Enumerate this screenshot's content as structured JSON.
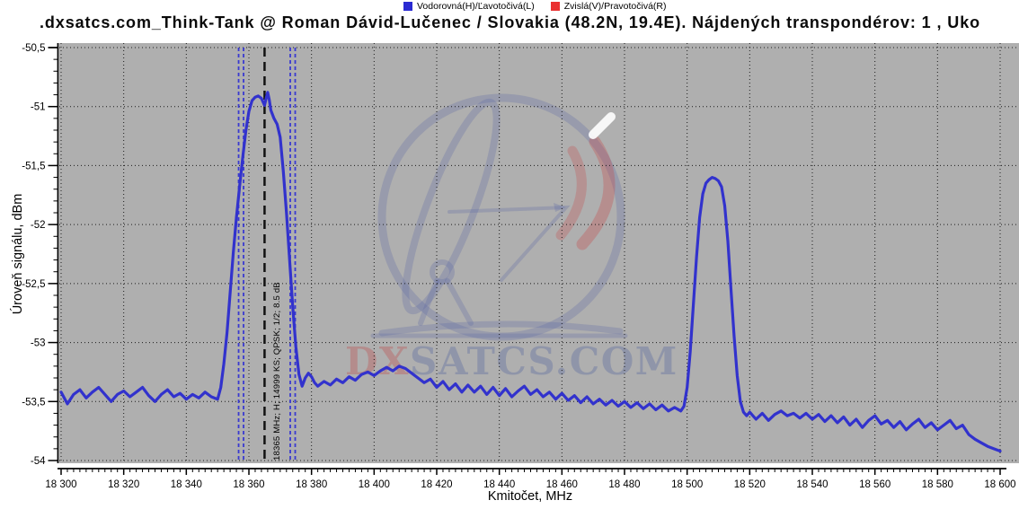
{
  "header": {
    "title": ".dxsatcs.com_Think-Tank @ Roman Dávid-Lučenec / Slovakia (48.2N, 19.4E). Nájdených transpondérov: 1 , Uko"
  },
  "legend": {
    "items": [
      {
        "label": "Vodorovná(H)/Ľavotočivá(L)",
        "color": "#2a2ad2"
      },
      {
        "label": "Zvislá(V)/Pravotočivá(R)",
        "color": "#ea3131"
      }
    ]
  },
  "chart_data": {
    "type": "line",
    "xlabel": "Kmitočet, MHz",
    "ylabel": "Úroveň signálu, dBm",
    "xlim": [
      18300,
      18600
    ],
    "ylim": [
      -54,
      -50.5
    ],
    "grid": "dotted",
    "plot_bg": "#afafaf",
    "x_ticks": [
      18300,
      18320,
      18340,
      18360,
      18380,
      18400,
      18420,
      18440,
      18460,
      18480,
      18500,
      18520,
      18540,
      18560,
      18580,
      18600
    ],
    "x_tick_labels": [
      "18 300",
      "18 320",
      "18 340",
      "18 360",
      "18 380",
      "18 400",
      "18 420",
      "18 440",
      "18 460",
      "18 480",
      "18 500",
      "18 520",
      "18 540",
      "18 560",
      "18 580",
      "18 600"
    ],
    "x_minor_step": 2,
    "y_ticks": [
      -50.5,
      -51,
      -51.5,
      -52,
      -52.5,
      -53,
      -53.5,
      -54
    ],
    "y_tick_labels": [
      "-50,5",
      "-51",
      "-51,5",
      "-52",
      "-52,5",
      "-53",
      "-53,5",
      "-54"
    ],
    "y_minor_step": 0.1,
    "marker": {
      "freq_mhz": 18365,
      "label": "18365 MHz; H; 14999 KS; QPSK; 1/2; 8.5 dB",
      "band_edges_mhz": [
        18357.5,
        18374
      ],
      "line_color": "#111111",
      "band_color": "#3a3ad0"
    },
    "watermark": {
      "text_dx": "DX",
      "text_rest": "SATCS.COM"
    },
    "series": [
      {
        "name": "Vodorovná(H)/Ľavotočivá(L)",
        "color": "#3232cd",
        "points": [
          [
            18300,
            -53.42
          ],
          [
            18302,
            -53.52
          ],
          [
            18304,
            -53.44
          ],
          [
            18306,
            -53.4
          ],
          [
            18308,
            -53.47
          ],
          [
            18310,
            -53.42
          ],
          [
            18312,
            -53.38
          ],
          [
            18314,
            -53.44
          ],
          [
            18316,
            -53.5
          ],
          [
            18318,
            -53.44
          ],
          [
            18320,
            -53.41
          ],
          [
            18322,
            -53.46
          ],
          [
            18324,
            -53.42
          ],
          [
            18326,
            -53.38
          ],
          [
            18328,
            -53.45
          ],
          [
            18330,
            -53.5
          ],
          [
            18332,
            -53.44
          ],
          [
            18334,
            -53.4
          ],
          [
            18336,
            -53.46
          ],
          [
            18338,
            -53.43
          ],
          [
            18340,
            -53.48
          ],
          [
            18342,
            -53.44
          ],
          [
            18344,
            -53.47
          ],
          [
            18346,
            -53.42
          ],
          [
            18348,
            -53.46
          ],
          [
            18350,
            -53.48
          ],
          [
            18351,
            -53.38
          ],
          [
            18352,
            -53.18
          ],
          [
            18353,
            -52.92
          ],
          [
            18354,
            -52.58
          ],
          [
            18355,
            -52.24
          ],
          [
            18356,
            -51.94
          ],
          [
            18357,
            -51.68
          ],
          [
            18358,
            -51.44
          ],
          [
            18359,
            -51.21
          ],
          [
            18360,
            -51.04
          ],
          [
            18361,
            -50.95
          ],
          [
            18362,
            -50.92
          ],
          [
            18363,
            -50.91
          ],
          [
            18364,
            -50.93
          ],
          [
            18365,
            -50.99
          ],
          [
            18365.6,
            -50.92
          ],
          [
            18366,
            -50.88
          ],
          [
            18366.5,
            -50.94
          ],
          [
            18367,
            -51.03
          ],
          [
            18368,
            -51.1
          ],
          [
            18369,
            -51.15
          ],
          [
            18370,
            -51.26
          ],
          [
            18371,
            -51.55
          ],
          [
            18372,
            -51.9
          ],
          [
            18373,
            -52.3
          ],
          [
            18374,
            -52.7
          ],
          [
            18375,
            -53.04
          ],
          [
            18376,
            -53.27
          ],
          [
            18377,
            -53.37
          ],
          [
            18378,
            -53.3
          ],
          [
            18379,
            -53.26
          ],
          [
            18380,
            -53.29
          ],
          [
            18381,
            -53.34
          ],
          [
            18382,
            -53.37
          ],
          [
            18384,
            -53.33
          ],
          [
            18386,
            -53.36
          ],
          [
            18388,
            -53.31
          ],
          [
            18390,
            -53.34
          ],
          [
            18392,
            -53.29
          ],
          [
            18394,
            -53.32
          ],
          [
            18396,
            -53.27
          ],
          [
            18398,
            -53.25
          ],
          [
            18400,
            -53.28
          ],
          [
            18402,
            -53.24
          ],
          [
            18404,
            -53.21
          ],
          [
            18406,
            -53.24
          ],
          [
            18408,
            -53.2
          ],
          [
            18410,
            -53.22
          ],
          [
            18412,
            -53.26
          ],
          [
            18414,
            -53.3
          ],
          [
            18416,
            -53.34
          ],
          [
            18418,
            -53.31
          ],
          [
            18420,
            -53.38
          ],
          [
            18422,
            -53.33
          ],
          [
            18424,
            -53.4
          ],
          [
            18426,
            -53.35
          ],
          [
            18428,
            -53.42
          ],
          [
            18430,
            -53.36
          ],
          [
            18432,
            -53.42
          ],
          [
            18434,
            -53.37
          ],
          [
            18436,
            -53.44
          ],
          [
            18438,
            -53.38
          ],
          [
            18440,
            -53.45
          ],
          [
            18442,
            -53.39
          ],
          [
            18444,
            -53.46
          ],
          [
            18446,
            -53.41
          ],
          [
            18448,
            -53.37
          ],
          [
            18450,
            -53.44
          ],
          [
            18452,
            -53.4
          ],
          [
            18454,
            -53.46
          ],
          [
            18456,
            -53.42
          ],
          [
            18458,
            -53.48
          ],
          [
            18460,
            -53.43
          ],
          [
            18462,
            -53.49
          ],
          [
            18464,
            -53.45
          ],
          [
            18466,
            -53.51
          ],
          [
            18468,
            -53.46
          ],
          [
            18470,
            -53.52
          ],
          [
            18472,
            -53.48
          ],
          [
            18474,
            -53.53
          ],
          [
            18476,
            -53.49
          ],
          [
            18478,
            -53.54
          ],
          [
            18480,
            -53.5
          ],
          [
            18482,
            -53.55
          ],
          [
            18484,
            -53.51
          ],
          [
            18486,
            -53.56
          ],
          [
            18488,
            -53.52
          ],
          [
            18490,
            -53.57
          ],
          [
            18492,
            -53.53
          ],
          [
            18494,
            -53.58
          ],
          [
            18496,
            -53.55
          ],
          [
            18498,
            -53.58
          ],
          [
            18499,
            -53.54
          ],
          [
            18500,
            -53.38
          ],
          [
            18501,
            -53.08
          ],
          [
            18502,
            -52.68
          ],
          [
            18503,
            -52.28
          ],
          [
            18504,
            -51.94
          ],
          [
            18505,
            -51.74
          ],
          [
            18506,
            -51.65
          ],
          [
            18507,
            -51.62
          ],
          [
            18508,
            -51.6
          ],
          [
            18509,
            -51.61
          ],
          [
            18510,
            -51.63
          ],
          [
            18511,
            -51.68
          ],
          [
            18512,
            -51.84
          ],
          [
            18513,
            -52.14
          ],
          [
            18514,
            -52.54
          ],
          [
            18515,
            -52.94
          ],
          [
            18516,
            -53.28
          ],
          [
            18517,
            -53.5
          ],
          [
            18518,
            -53.59
          ],
          [
            18519,
            -53.62
          ],
          [
            18520,
            -53.59
          ],
          [
            18522,
            -53.65
          ],
          [
            18524,
            -53.6
          ],
          [
            18526,
            -53.66
          ],
          [
            18528,
            -53.61
          ],
          [
            18530,
            -53.58
          ],
          [
            18532,
            -53.62
          ],
          [
            18534,
            -53.6
          ],
          [
            18536,
            -53.64
          ],
          [
            18538,
            -53.6
          ],
          [
            18540,
            -53.65
          ],
          [
            18542,
            -53.61
          ],
          [
            18544,
            -53.67
          ],
          [
            18546,
            -53.62
          ],
          [
            18548,
            -53.68
          ],
          [
            18550,
            -53.63
          ],
          [
            18552,
            -53.7
          ],
          [
            18554,
            -53.65
          ],
          [
            18556,
            -53.72
          ],
          [
            18558,
            -53.66
          ],
          [
            18560,
            -53.62
          ],
          [
            18562,
            -53.69
          ],
          [
            18564,
            -53.66
          ],
          [
            18566,
            -53.72
          ],
          [
            18568,
            -53.67
          ],
          [
            18570,
            -53.74
          ],
          [
            18572,
            -53.69
          ],
          [
            18574,
            -53.65
          ],
          [
            18576,
            -53.72
          ],
          [
            18578,
            -53.68
          ],
          [
            18580,
            -53.74
          ],
          [
            18582,
            -53.7
          ],
          [
            18584,
            -53.66
          ],
          [
            18586,
            -53.73
          ],
          [
            18588,
            -53.7
          ],
          [
            18590,
            -53.78
          ],
          [
            18592,
            -53.82
          ],
          [
            18594,
            -53.85
          ],
          [
            18596,
            -53.88
          ],
          [
            18598,
            -53.9
          ],
          [
            18600,
            -53.92
          ]
        ]
      }
    ]
  }
}
